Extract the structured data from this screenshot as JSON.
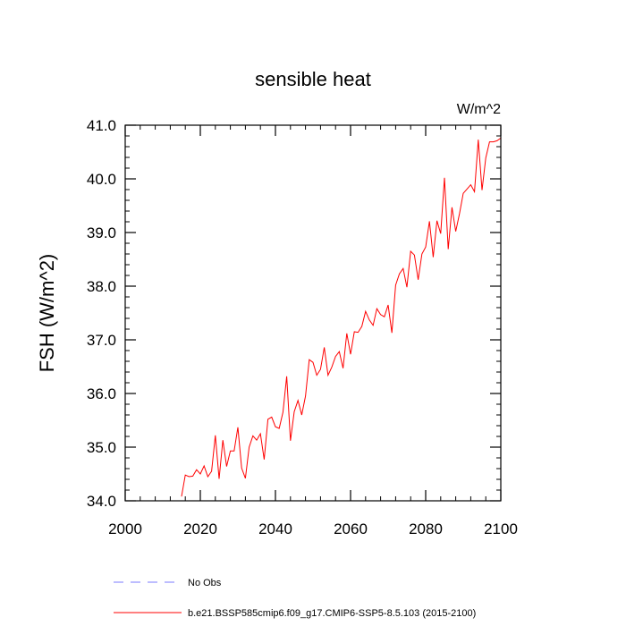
{
  "chart_data": {
    "type": "line",
    "title": "sensible heat",
    "units_label": "W/m^2",
    "ylabel": "FSH  (W/m^2)",
    "xlabel": "",
    "xlim": [
      2000,
      2100
    ],
    "ylim": [
      34.0,
      41.0
    ],
    "xticks": [
      2000,
      2020,
      2040,
      2060,
      2080,
      2100
    ],
    "yticks": [
      34.0,
      35.0,
      36.0,
      37.0,
      38.0,
      39.0,
      40.0,
      41.0
    ],
    "ytick_labels": [
      "34.0",
      "35.0",
      "36.0",
      "37.0",
      "38.0",
      "39.0",
      "40.0",
      "41.0"
    ],
    "grid": false,
    "legend_position": "bottom",
    "series": [
      {
        "name": "b.e21.BSSP585cmip6.f09_g17.CMIP6-SSP5-8.5.103 (2015-2100)",
        "color": "#ff0000",
        "style": "solid",
        "x": [
          2015,
          2016,
          2017,
          2018,
          2019,
          2020,
          2021,
          2022,
          2023,
          2024,
          2025,
          2026,
          2027,
          2028,
          2029,
          2030,
          2031,
          2032,
          2033,
          2034,
          2035,
          2036,
          2037,
          2038,
          2039,
          2040,
          2041,
          2042,
          2043,
          2044,
          2045,
          2046,
          2047,
          2048,
          2049,
          2050,
          2051,
          2052,
          2053,
          2054,
          2055,
          2056,
          2057,
          2058,
          2059,
          2060,
          2061,
          2062,
          2063,
          2064,
          2065,
          2066,
          2067,
          2068,
          2069,
          2070,
          2071,
          2072,
          2073,
          2074,
          2075,
          2076,
          2077,
          2078,
          2079,
          2080,
          2081,
          2082,
          2083,
          2084,
          2085,
          2086,
          2087,
          2088,
          2089,
          2090,
          2091,
          2092,
          2093,
          2094,
          2095,
          2096,
          2097,
          2098,
          2099,
          2100
        ],
        "values": [
          34.08,
          34.48,
          34.45,
          34.46,
          34.58,
          34.5,
          34.65,
          34.45,
          34.55,
          35.22,
          34.41,
          35.13,
          34.64,
          34.93,
          34.93,
          35.37,
          34.61,
          34.42,
          35.0,
          35.21,
          35.13,
          35.25,
          34.77,
          35.52,
          35.56,
          35.38,
          35.35,
          35.65,
          36.32,
          35.12,
          35.66,
          35.87,
          35.6,
          35.95,
          36.63,
          36.58,
          36.34,
          36.45,
          36.86,
          36.34,
          36.49,
          36.69,
          36.78,
          36.47,
          37.12,
          36.73,
          37.15,
          37.14,
          37.25,
          37.53,
          37.37,
          37.27,
          37.58,
          37.47,
          37.43,
          37.65,
          37.13,
          38.02,
          38.23,
          38.33,
          37.98,
          38.65,
          38.58,
          38.12,
          38.6,
          38.73,
          39.21,
          38.54,
          39.22,
          38.98,
          40.02,
          38.69,
          39.47,
          39.02,
          39.35,
          39.73,
          39.81,
          39.89,
          39.76,
          40.73,
          39.79,
          40.39,
          40.69,
          40.69,
          40.71,
          40.76
        ]
      },
      {
        "name": "No Obs",
        "color": "#7b7bff",
        "style": "dashed",
        "x": [],
        "values": []
      }
    ]
  }
}
